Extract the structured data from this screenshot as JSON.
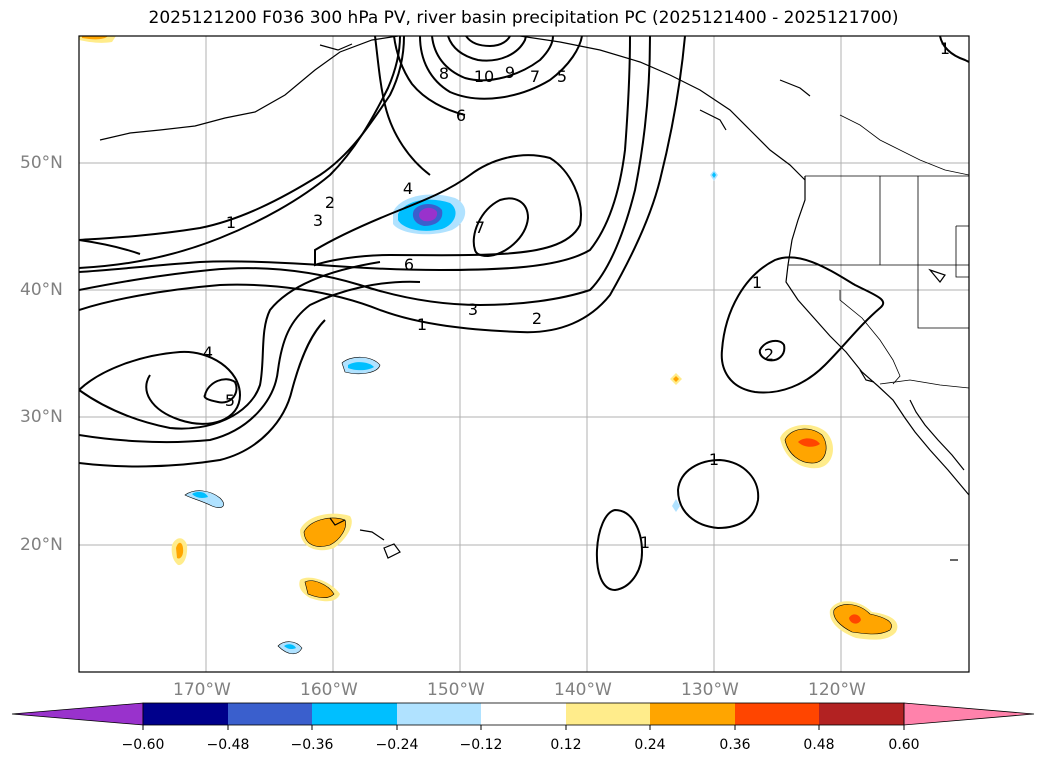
{
  "title": "2025121200 F036 300 hPa PV, river basin precipitation PC (2025121400 - 2025121700)",
  "map": {
    "lat_labels": [
      "50°N",
      "40°N",
      "30°N",
      "20°N"
    ],
    "lon_labels": [
      "170°W",
      "160°W",
      "150°W",
      "140°W",
      "130°W",
      "120°W"
    ],
    "grid": true,
    "coastlines": true,
    "state_borders": true
  },
  "contour_labels": [
    "1",
    "2",
    "3",
    "4",
    "5",
    "6",
    "7",
    "8",
    "9",
    "10",
    "1",
    "2",
    "3",
    "4",
    "5",
    "6",
    "7",
    "1",
    "2",
    "1",
    "1",
    "1",
    "2"
  ],
  "colorbar": {
    "ticks": [
      "−0.60",
      "−0.48",
      "−0.36",
      "−0.24",
      "−0.12",
      "0.12",
      "0.24",
      "0.36",
      "0.48",
      "0.60"
    ],
    "colors": [
      "#9932cc",
      "#00008b",
      "#3a5fcd",
      "#00bfff",
      "#b0e2ff",
      "#ffffff",
      "#ffec8b",
      "#ffa500",
      "#ff4500",
      "#b22222",
      "#ff82ab"
    ],
    "extend": "both"
  }
}
